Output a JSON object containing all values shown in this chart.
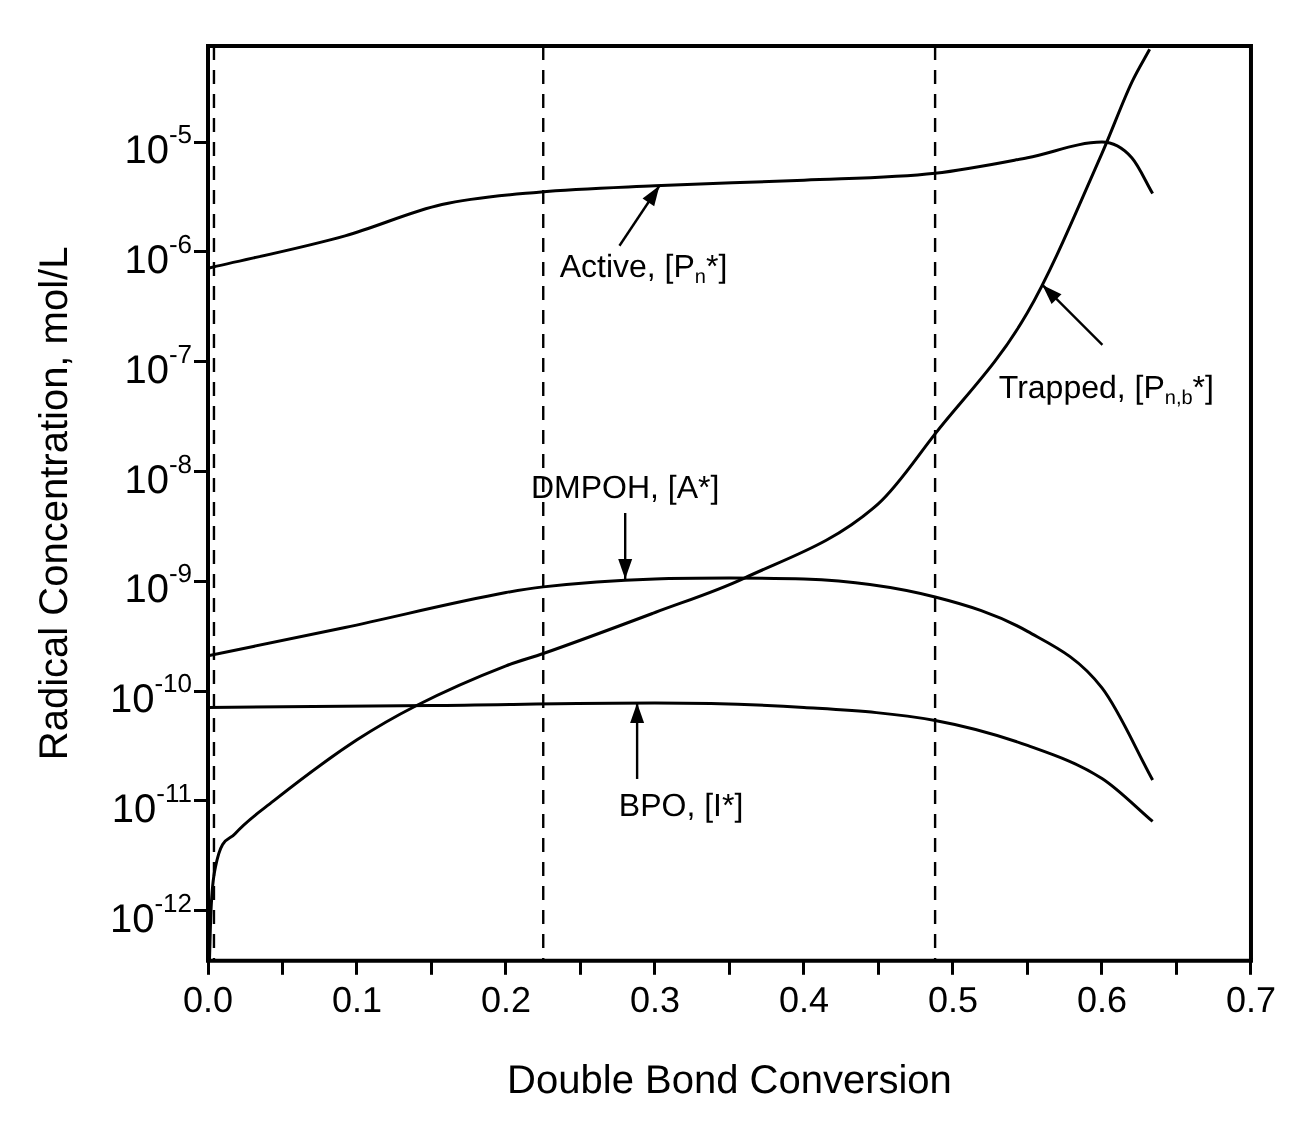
{
  "chart_data": {
    "type": "line",
    "xlabel": "Double Bond Conversion",
    "ylabel": "Radical Concentration, mol/L",
    "log": "y",
    "grid": false,
    "legend": false,
    "marker": "none",
    "line_style": "solid",
    "xlim": [
      0,
      0.7
    ],
    "ylim": [
      3.5e-13,
      7.5e-05
    ],
    "xticks": [
      {
        "value": 0,
        "label": "0.0"
      },
      {
        "value": 0.05,
        "label": null
      },
      {
        "value": 0.1,
        "label": "0.1"
      },
      {
        "value": 0.15,
        "label": null
      },
      {
        "value": 0.2,
        "label": "0.2"
      },
      {
        "value": 0.25,
        "label": null
      },
      {
        "value": 0.3,
        "label": "0.3"
      },
      {
        "value": 0.35,
        "label": null
      },
      {
        "value": 0.4,
        "label": "0.4"
      },
      {
        "value": 0.45,
        "label": null
      },
      {
        "value": 0.5,
        "label": "0.5"
      },
      {
        "value": 0.55,
        "label": null
      },
      {
        "value": 0.6,
        "label": "0.6"
      },
      {
        "value": 0.65,
        "label": null
      },
      {
        "value": 0.7,
        "label": "0.7"
      }
    ],
    "yticks": [
      {
        "value": 1e-12,
        "label": "10$^{-12}$"
      },
      {
        "value": 1e-11,
        "label": "10$^{-11}$"
      },
      {
        "value": 1e-10,
        "label": "10$^{-10}$"
      },
      {
        "value": 1e-09,
        "label": "10$^{-9}$"
      },
      {
        "value": 1e-08,
        "label": "10$^{-8}$"
      },
      {
        "value": 1e-07,
        "label": "10$^{-7}$"
      },
      {
        "value": 1e-06,
        "label": "10$^{-6}$"
      },
      {
        "value": 1e-05,
        "label": "10$^{-5}$"
      }
    ],
    "series": [
      {
        "color": "#000000",
        "x": [
          0,
          0.092,
          0.157,
          0.222,
          0.3,
          0.4,
          0.488,
          0.55,
          0.6,
          0.62,
          0.634
        ],
        "values": [
          7.1e-07,
          1.4e-06,
          2.7e-06,
          3.5e-06,
          4e-06,
          4.5e-06,
          5.2e-06,
          7.2e-06,
          1e-05,
          7.2e-06,
          3.4e-06
        ]
      },
      {
        "color": "#000000",
        "x": [
          0.001,
          0.002,
          0.005,
          0.018,
          0.044,
          0.1,
          0.14,
          0.2,
          0.225,
          0.3,
          0.36,
          0.45,
          0.488,
          0.55,
          0.6,
          0.62,
          0.632
        ],
        "values": [
          3.6e-13,
          1e-12,
          2.5e-12,
          5e-12,
          1e-11,
          3.6e-11,
          7.4e-11,
          1.7e-10,
          2.2e-10,
          5.2e-10,
          1.07e-09,
          5.1e-09,
          2.2e-08,
          2.8e-07,
          7.9e-06,
          3.5e-05,
          7e-05
        ]
      },
      {
        "color": "#000000",
        "x": [
          0,
          0.092,
          0.2,
          0.225,
          0.3,
          0.35,
          0.4,
          0.488,
          0.55,
          0.6,
          0.634
        ],
        "values": [
          2.1e-10,
          3.8e-10,
          7.9e-10,
          8.9e-10,
          1.05e-09,
          1.07e-09,
          1.05e-09,
          7.2e-10,
          3.5e-10,
          1.07e-10,
          1.55e-11
        ]
      },
      {
        "color": "#000000",
        "x": [
          0,
          0.15,
          0.3,
          0.4,
          0.488,
          0.55,
          0.6,
          0.634
        ],
        "values": [
          7.1e-11,
          7.4e-11,
          7.8e-11,
          7.1e-11,
          5.4e-11,
          3.2e-11,
          1.6e-11,
          6.5e-12
        ]
      }
    ],
    "ref_lines": [
      {
        "axis": "x",
        "value": 0.004,
        "color": "#000000",
        "line_style": "dashed"
      },
      {
        "axis": "x",
        "value": 0.225,
        "color": "#000000",
        "line_style": "dashed"
      },
      {
        "axis": "x",
        "value": 0.488,
        "color": "#000000",
        "line_style": "dashed"
      }
    ],
    "annotations": [
      {
        "text": "Active, [P$_{n}$*]",
        "x": 0.303,
        "y": 4e-06
      },
      {
        "text": "Trapped, [P$_{n,b}$*]",
        "x": 0.56,
        "y": 5e-07
      },
      {
        "text": "DMPOH, [A*]",
        "x": 0.28,
        "y": 1.05e-09
      },
      {
        "text": "BPO, [I*]",
        "x": 0.288,
        "y": 7.8e-11
      }
    ]
  }
}
